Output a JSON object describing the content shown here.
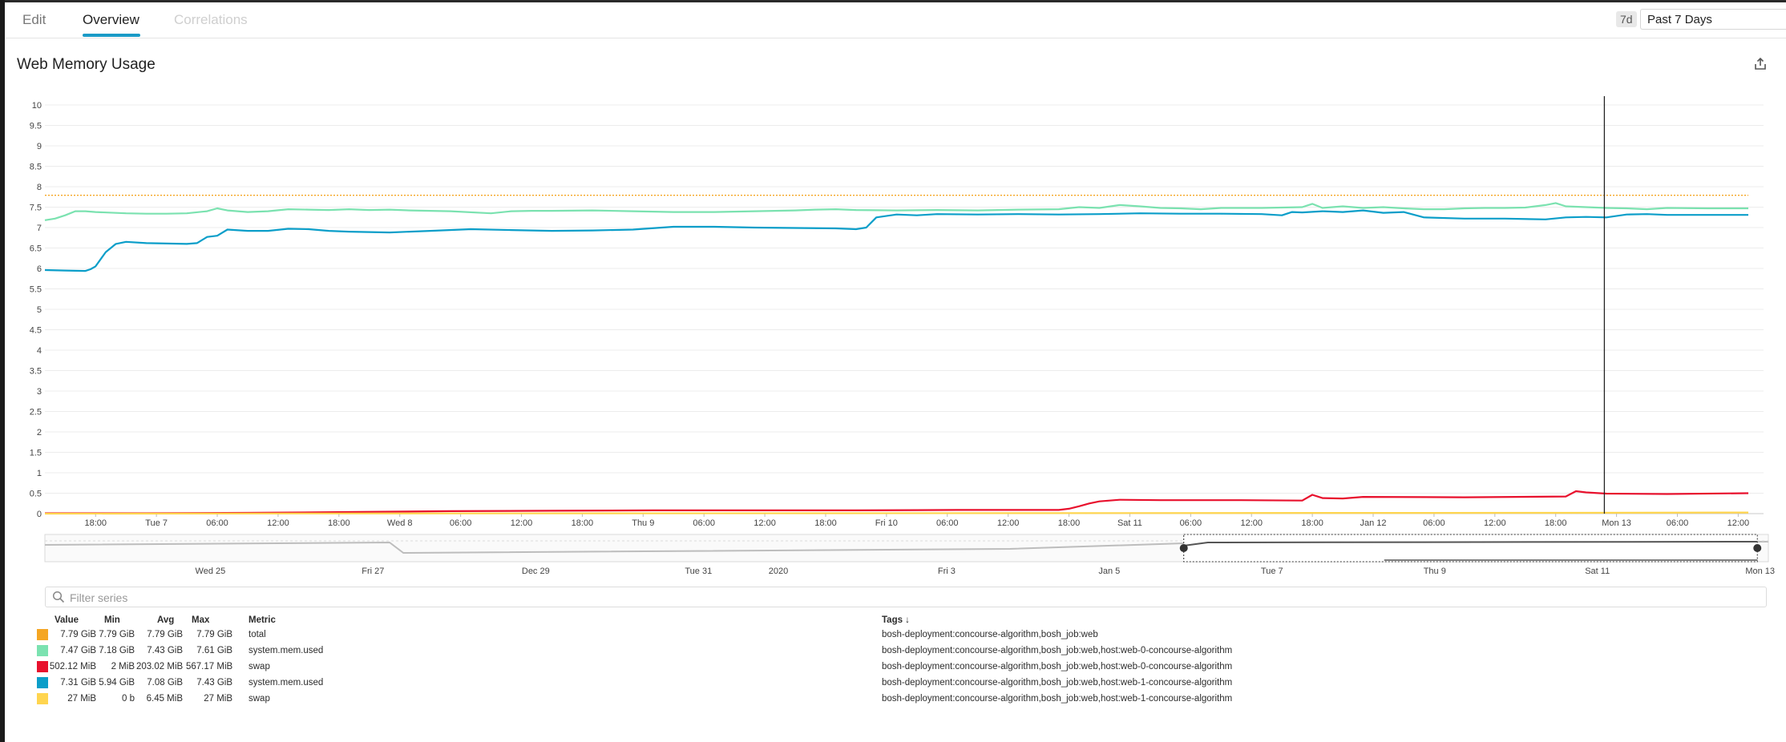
{
  "tabs": [
    {
      "label": "Edit"
    },
    {
      "label": "Overview"
    },
    {
      "label": "Correlations"
    }
  ],
  "range": {
    "badge": "7d",
    "label": "Past 7 Days"
  },
  "panel": {
    "title": "Web Memory Usage"
  },
  "filter": {
    "placeholder": "Filter series"
  },
  "legend": {
    "headers": {
      "value": "Value",
      "min": "Min",
      "avg": "Avg",
      "max": "Max",
      "metric": "Metric",
      "tags": "Tags ↓"
    },
    "rows": [
      {
        "color": "#f5a623",
        "value": "7.79 GiB",
        "min": "7.79 GiB",
        "avg": "7.79 GiB",
        "max": "7.79 GiB",
        "metric": "total",
        "tags": "bosh-deployment:concourse-algorithm,bosh_job:web"
      },
      {
        "color": "#7be2b0",
        "value": "7.47 GiB",
        "min": "7.18 GiB",
        "avg": "7.43 GiB",
        "max": "7.61 GiB",
        "metric": "system.mem.used",
        "tags": "bosh-deployment:concourse-algorithm,bosh_job:web,host:web-0-concourse-algorithm"
      },
      {
        "color": "#e8112d",
        "value": "502.12 MiB",
        "min": "2 MiB",
        "avg": "203.02 MiB",
        "max": "567.17 MiB",
        "metric": "swap",
        "tags": "bosh-deployment:concourse-algorithm,bosh_job:web,host:web-0-concourse-algorithm"
      },
      {
        "color": "#0b9ec9",
        "value": "7.31 GiB",
        "min": "5.94 GiB",
        "avg": "7.08 GiB",
        "max": "7.43 GiB",
        "metric": "system.mem.used",
        "tags": "bosh-deployment:concourse-algorithm,bosh_job:web,host:web-1-concourse-algorithm"
      },
      {
        "color": "#ffd54f",
        "value": "27 MiB",
        "min": "0 b",
        "avg": "6.45 MiB",
        "max": "27 MiB",
        "metric": "swap",
        "tags": "bosh-deployment:concourse-algorithm,bosh_job:web,host:web-1-concourse-algorithm"
      }
    ]
  },
  "chart_data": [
    {
      "type": "line",
      "title": "Web Memory Usage",
      "ylim": [
        0,
        10
      ],
      "yticks": [
        "0",
        "0.5",
        "1",
        "1.5",
        "2",
        "2.5",
        "3",
        "3.5",
        "4",
        "4.5",
        "5",
        "5.5",
        "6",
        "6.5",
        "7",
        "7.5",
        "8",
        "8.5",
        "9",
        "9.5",
        "10"
      ],
      "x_range_hours": [
        0,
        169.5
      ],
      "x_ticks": [
        {
          "t": 5,
          "label": "18:00"
        },
        {
          "t": 11,
          "label": "Tue 7"
        },
        {
          "t": 17,
          "label": "06:00"
        },
        {
          "t": 23,
          "label": "12:00"
        },
        {
          "t": 29,
          "label": "18:00"
        },
        {
          "t": 35,
          "label": "Wed 8"
        },
        {
          "t": 41,
          "label": "06:00"
        },
        {
          "t": 47,
          "label": "12:00"
        },
        {
          "t": 53,
          "label": "18:00"
        },
        {
          "t": 59,
          "label": "Thu 9"
        },
        {
          "t": 65,
          "label": "06:00"
        },
        {
          "t": 71,
          "label": "12:00"
        },
        {
          "t": 77,
          "label": "18:00"
        },
        {
          "t": 83,
          "label": "Fri 10"
        },
        {
          "t": 89,
          "label": "06:00"
        },
        {
          "t": 95,
          "label": "12:00"
        },
        {
          "t": 101,
          "label": "18:00"
        },
        {
          "t": 107,
          "label": "Sat 11"
        },
        {
          "t": 113,
          "label": "06:00"
        },
        {
          "t": 119,
          "label": "12:00"
        },
        {
          "t": 125,
          "label": "18:00"
        },
        {
          "t": 131,
          "label": "Jan 12"
        },
        {
          "t": 137,
          "label": "06:00"
        },
        {
          "t": 143,
          "label": "12:00"
        },
        {
          "t": 149,
          "label": "18:00"
        },
        {
          "t": 155,
          "label": "Mon 13"
        },
        {
          "t": 161,
          "label": "06:00"
        },
        {
          "t": 167,
          "label": "12:00"
        }
      ],
      "cursor_t": 153.8,
      "grid": true,
      "series": [
        {
          "color": "#f5a623",
          "dashed": true,
          "x": [
            0,
            168
          ],
          "values": [
            7.79,
            7.79
          ]
        },
        {
          "color": "#7be2b0",
          "x": [
            0,
            1,
            2,
            3,
            4,
            5,
            8,
            10,
            12,
            14,
            16,
            17,
            18,
            20,
            22,
            24,
            26,
            28,
            30,
            32,
            34,
            36,
            40,
            44,
            46,
            48,
            50,
            54,
            58,
            62,
            66,
            70,
            74,
            76,
            78,
            80,
            84,
            88,
            92,
            96,
            100,
            102,
            104,
            106,
            108,
            110,
            112,
            114,
            116,
            120,
            124,
            125,
            126,
            128,
            130,
            132,
            134,
            136,
            138,
            140,
            142,
            144,
            146,
            148,
            149,
            150,
            152,
            154,
            156,
            158,
            160,
            164,
            168
          ],
          "values": [
            7.18,
            7.22,
            7.3,
            7.4,
            7.4,
            7.38,
            7.35,
            7.34,
            7.34,
            7.35,
            7.4,
            7.47,
            7.42,
            7.38,
            7.4,
            7.45,
            7.44,
            7.43,
            7.45,
            7.43,
            7.44,
            7.42,
            7.4,
            7.35,
            7.4,
            7.41,
            7.41,
            7.42,
            7.4,
            7.38,
            7.38,
            7.4,
            7.42,
            7.44,
            7.45,
            7.43,
            7.42,
            7.43,
            7.42,
            7.44,
            7.45,
            7.5,
            7.48,
            7.55,
            7.52,
            7.48,
            7.47,
            7.45,
            7.48,
            7.48,
            7.5,
            7.58,
            7.48,
            7.52,
            7.48,
            7.5,
            7.47,
            7.45,
            7.45,
            7.47,
            7.48,
            7.48,
            7.49,
            7.55,
            7.6,
            7.52,
            7.5,
            7.48,
            7.47,
            7.45,
            7.48,
            7.47,
            7.47
          ]
        },
        {
          "color": "#e8112d",
          "x": [
            0,
            10,
            20,
            30,
            40,
            50,
            60,
            70,
            80,
            90,
            100,
            101,
            102,
            103,
            104,
            106,
            110,
            118,
            124,
            125,
            126,
            128,
            130,
            140,
            150,
            151,
            152,
            154,
            160,
            168
          ],
          "values": [
            0.01,
            0.01,
            0.02,
            0.04,
            0.06,
            0.07,
            0.08,
            0.08,
            0.08,
            0.09,
            0.09,
            0.12,
            0.18,
            0.25,
            0.3,
            0.34,
            0.33,
            0.33,
            0.32,
            0.46,
            0.38,
            0.37,
            0.41,
            0.4,
            0.42,
            0.55,
            0.52,
            0.49,
            0.48,
            0.5
          ]
        },
        {
          "color": "#0b9ec9",
          "x": [
            0,
            2,
            4,
            4.5,
            5,
            6,
            7,
            8,
            10,
            12,
            14,
            15,
            16,
            17,
            18,
            20,
            22,
            24,
            26,
            28,
            30,
            34,
            38,
            42,
            46,
            50,
            54,
            58,
            62,
            66,
            70,
            74,
            78,
            80,
            81,
            82,
            84,
            86,
            88,
            92,
            96,
            100,
            104,
            108,
            112,
            116,
            120,
            122,
            123,
            124,
            126,
            128,
            130,
            132,
            134,
            136,
            140,
            144,
            148,
            150,
            152,
            154,
            156,
            158,
            160,
            168
          ],
          "values": [
            5.96,
            5.95,
            5.94,
            5.98,
            6.05,
            6.4,
            6.6,
            6.65,
            6.62,
            6.61,
            6.6,
            6.62,
            6.77,
            6.8,
            6.95,
            6.92,
            6.92,
            6.97,
            6.96,
            6.92,
            6.9,
            6.88,
            6.92,
            6.96,
            6.94,
            6.92,
            6.93,
            6.95,
            7.02,
            7.02,
            7.0,
            6.99,
            6.98,
            6.96,
            7.0,
            7.25,
            7.32,
            7.3,
            7.33,
            7.32,
            7.33,
            7.32,
            7.33,
            7.35,
            7.34,
            7.34,
            7.33,
            7.3,
            7.38,
            7.37,
            7.4,
            7.38,
            7.42,
            7.36,
            7.38,
            7.25,
            7.22,
            7.22,
            7.2,
            7.25,
            7.26,
            7.25,
            7.32,
            7.33,
            7.31,
            7.31
          ]
        },
        {
          "color": "#ffd54f",
          "x": [
            0,
            150,
            168
          ],
          "values": [
            0.0,
            0.02,
            0.027
          ]
        }
      ]
    },
    {
      "type": "area",
      "x_ticks": [
        {
          "t": 0.12,
          "label": "Wed 25"
        },
        {
          "t": 0.238,
          "label": "Fri 27"
        },
        {
          "t": 0.356,
          "label": "Dec 29"
        },
        {
          "t": 0.474,
          "label": "Tue 31"
        },
        {
          "t": 0.532,
          "label": "2020"
        },
        {
          "t": 0.654,
          "label": "Fri 3"
        },
        {
          "t": 0.772,
          "label": "Jan 5"
        },
        {
          "t": 0.89,
          "label": "Tue 7"
        },
        {
          "t": 1.008,
          "label": "Thu 9"
        },
        {
          "t": 1.126,
          "label": "Sat 11"
        },
        {
          "t": 1.244,
          "label": "Mon 13"
        }
      ],
      "selected_range": [
        0.826,
        1.242
      ]
    }
  ]
}
